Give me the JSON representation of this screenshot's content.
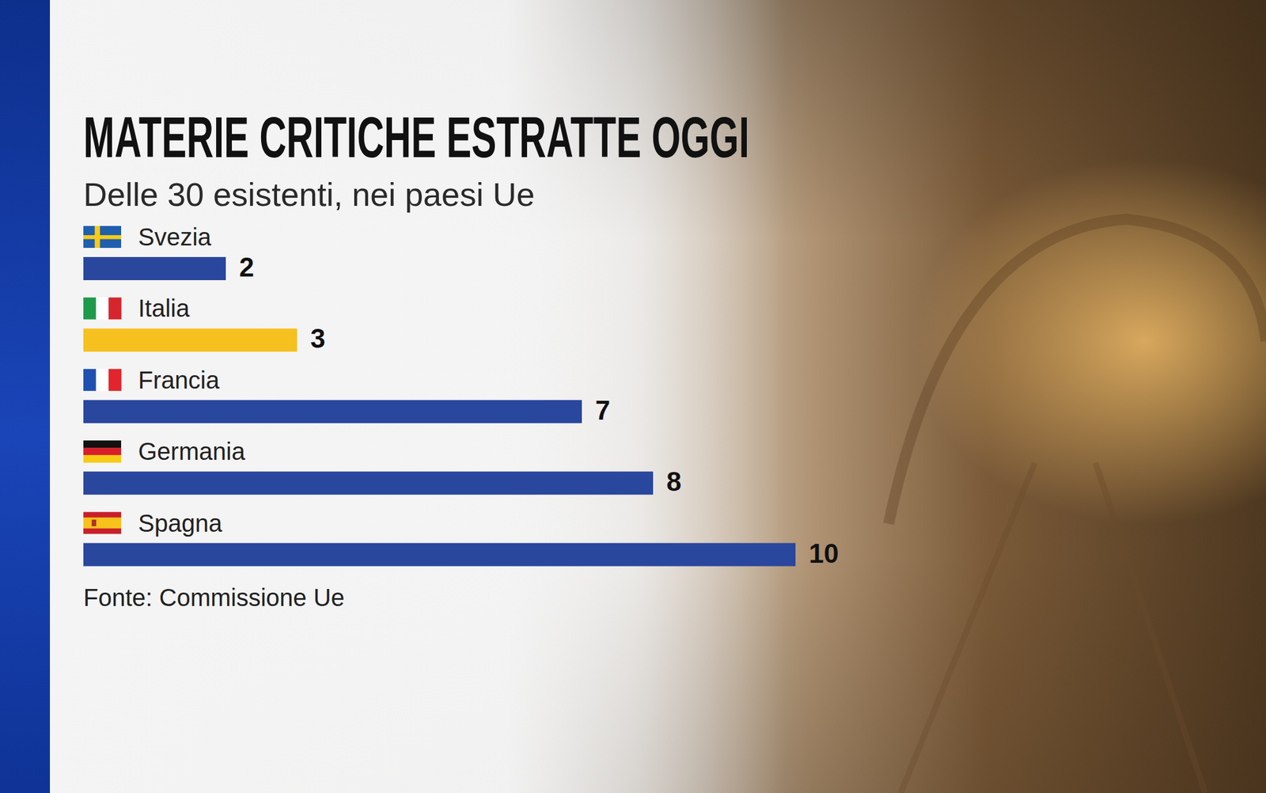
{
  "chart_data": {
    "type": "bar",
    "orientation": "horizontal",
    "title": "MATERIE CRITICHE ESTRATTE OGGI",
    "subtitle": "Delle 30 esistenti, nei paesi Ue",
    "categories": [
      "Svezia",
      "Italia",
      "Francia",
      "Germania",
      "Spagna"
    ],
    "values": [
      2,
      3,
      7,
      8,
      10
    ],
    "colors": [
      "#2a479e",
      "#f6c01e",
      "#2a479e",
      "#2a479e",
      "#2a479e"
    ],
    "xlim": [
      0,
      10
    ],
    "grid": false,
    "data_labels": true,
    "tick_labels": false,
    "source": "Fonte: Commissione Ue"
  }
}
